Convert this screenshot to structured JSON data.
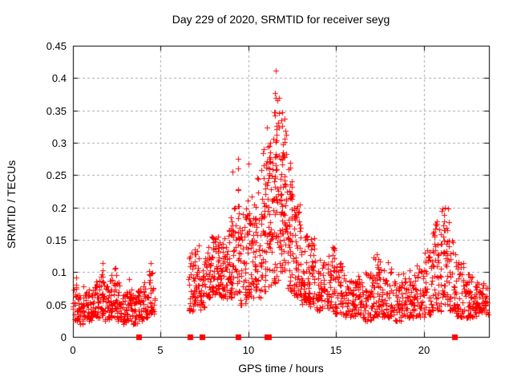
{
  "figure": {
    "title": "Day 229 of 2020, SRMTID for receiver seyg",
    "background": "#ffffff"
  },
  "chart_data": {
    "type": "scatter",
    "title": "Day 229 of 2020, SRMTID for receiver seyg",
    "xlabel": "GPS time / hours",
    "ylabel": "SRMTID / TECUs",
    "xlim": [
      0,
      23.7
    ],
    "ylim": [
      0,
      0.45
    ],
    "xticks": [
      0,
      5,
      10,
      15,
      20
    ],
    "yticks": [
      0,
      0.05,
      0.1,
      0.15,
      0.2,
      0.25,
      0.3,
      0.35,
      0.4,
      0.45
    ],
    "grid": true,
    "legend": "none",
    "marker": "plus",
    "marker_color": "#ff0000",
    "grid_color": "#a8a8a8",
    "axis_color": "#000000",
    "seed": 2292020,
    "data_gaps_hours": [
      [
        4.65,
        6.55
      ]
    ],
    "axis_marker_squares_y0": [
      3.73,
      6.67,
      7.33,
      9.4,
      11.05,
      11.15,
      21.75
    ],
    "notable_points": [
      [
        11.57,
        0.412
      ],
      [
        11.5,
        0.377
      ],
      [
        11.55,
        0.369
      ],
      [
        11.9,
        0.347
      ],
      [
        21.2,
        0.2
      ],
      [
        9.4,
        0.275
      ],
      [
        10.0,
        0.268
      ]
    ],
    "bands": [
      [
        0.0,
        0.3,
        28,
        0.025,
        0.095
      ],
      [
        0.3,
        0.6,
        26,
        0.02,
        0.065
      ],
      [
        0.6,
        0.9,
        26,
        0.03,
        0.08
      ],
      [
        0.9,
        1.2,
        26,
        0.025,
        0.075
      ],
      [
        1.2,
        1.5,
        26,
        0.03,
        0.09
      ],
      [
        1.5,
        1.8,
        27,
        0.03,
        0.115
      ],
      [
        1.8,
        2.1,
        26,
        0.025,
        0.08
      ],
      [
        2.1,
        2.45,
        30,
        0.03,
        0.11
      ],
      [
        2.45,
        2.75,
        26,
        0.025,
        0.085
      ],
      [
        2.75,
        3.1,
        28,
        0.02,
        0.07
      ],
      [
        3.1,
        3.4,
        26,
        0.025,
        0.09
      ],
      [
        3.4,
        3.7,
        24,
        0.02,
        0.065
      ],
      [
        3.7,
        4.0,
        24,
        0.025,
        0.08
      ],
      [
        4.0,
        4.3,
        26,
        0.03,
        0.09
      ],
      [
        4.3,
        4.65,
        30,
        0.035,
        0.105
      ],
      [
        6.55,
        6.9,
        30,
        0.04,
        0.13
      ],
      [
        6.9,
        7.2,
        28,
        0.05,
        0.15
      ],
      [
        7.2,
        7.5,
        26,
        0.04,
        0.12
      ],
      [
        7.5,
        7.9,
        38,
        0.06,
        0.145
      ],
      [
        7.9,
        8.4,
        55,
        0.065,
        0.16
      ],
      [
        8.4,
        8.8,
        42,
        0.06,
        0.155
      ],
      [
        8.8,
        9.1,
        30,
        0.06,
        0.17
      ],
      [
        9.1,
        9.5,
        34,
        0.065,
        0.21
      ],
      [
        9.5,
        10.0,
        45,
        0.05,
        0.2
      ],
      [
        10.0,
        10.5,
        50,
        0.06,
        0.22
      ],
      [
        10.5,
        11.0,
        52,
        0.06,
        0.26
      ],
      [
        11.0,
        11.4,
        48,
        0.07,
        0.33
      ],
      [
        11.4,
        11.8,
        52,
        0.08,
        0.375
      ],
      [
        11.8,
        12.2,
        55,
        0.1,
        0.35
      ],
      [
        12.2,
        12.6,
        46,
        0.07,
        0.27
      ],
      [
        12.6,
        13.0,
        44,
        0.06,
        0.21
      ],
      [
        13.0,
        13.4,
        42,
        0.05,
        0.17
      ],
      [
        13.4,
        13.8,
        40,
        0.045,
        0.16
      ],
      [
        13.8,
        14.3,
        42,
        0.04,
        0.12
      ],
      [
        14.3,
        14.9,
        46,
        0.04,
        0.14
      ],
      [
        14.9,
        15.4,
        40,
        0.035,
        0.11
      ],
      [
        15.4,
        16.0,
        48,
        0.03,
        0.1
      ],
      [
        16.0,
        16.6,
        46,
        0.03,
        0.095
      ],
      [
        16.6,
        17.1,
        40,
        0.025,
        0.1
      ],
      [
        17.1,
        17.6,
        42,
        0.03,
        0.125
      ],
      [
        17.6,
        18.2,
        48,
        0.03,
        0.11
      ],
      [
        18.2,
        18.8,
        46,
        0.025,
        0.1
      ],
      [
        18.8,
        19.4,
        46,
        0.03,
        0.105
      ],
      [
        19.4,
        20.0,
        48,
        0.03,
        0.11
      ],
      [
        20.0,
        20.5,
        42,
        0.035,
        0.135
      ],
      [
        20.5,
        21.0,
        44,
        0.04,
        0.17
      ],
      [
        21.0,
        21.4,
        36,
        0.05,
        0.2
      ],
      [
        21.4,
        21.8,
        34,
        0.04,
        0.15
      ],
      [
        21.8,
        22.3,
        40,
        0.03,
        0.12
      ],
      [
        22.3,
        23.0,
        52,
        0.03,
        0.1
      ],
      [
        23.0,
        23.65,
        48,
        0.035,
        0.085
      ]
    ],
    "spikes": [
      [
        1.62,
        0.125,
        4
      ],
      [
        2.35,
        0.115,
        4
      ],
      [
        4.45,
        0.15,
        3
      ],
      [
        7.0,
        0.155,
        4
      ],
      [
        8.3,
        0.175,
        4
      ],
      [
        9.05,
        0.257,
        6
      ],
      [
        9.4,
        0.275,
        7
      ],
      [
        10.0,
        0.268,
        6
      ],
      [
        10.45,
        0.24,
        5
      ],
      [
        10.9,
        0.3,
        6
      ],
      [
        11.2,
        0.33,
        6
      ],
      [
        11.55,
        0.36,
        8
      ],
      [
        11.9,
        0.347,
        9
      ],
      [
        12.1,
        0.3,
        6
      ],
      [
        12.45,
        0.265,
        6
      ],
      [
        12.75,
        0.21,
        5
      ],
      [
        13.55,
        0.165,
        5
      ],
      [
        14.7,
        0.14,
        5
      ],
      [
        15.2,
        0.115,
        4
      ],
      [
        17.35,
        0.13,
        5
      ],
      [
        17.9,
        0.115,
        4
      ],
      [
        20.7,
        0.185,
        5
      ],
      [
        21.15,
        0.21,
        7
      ],
      [
        22.6,
        0.11,
        3
      ]
    ]
  }
}
